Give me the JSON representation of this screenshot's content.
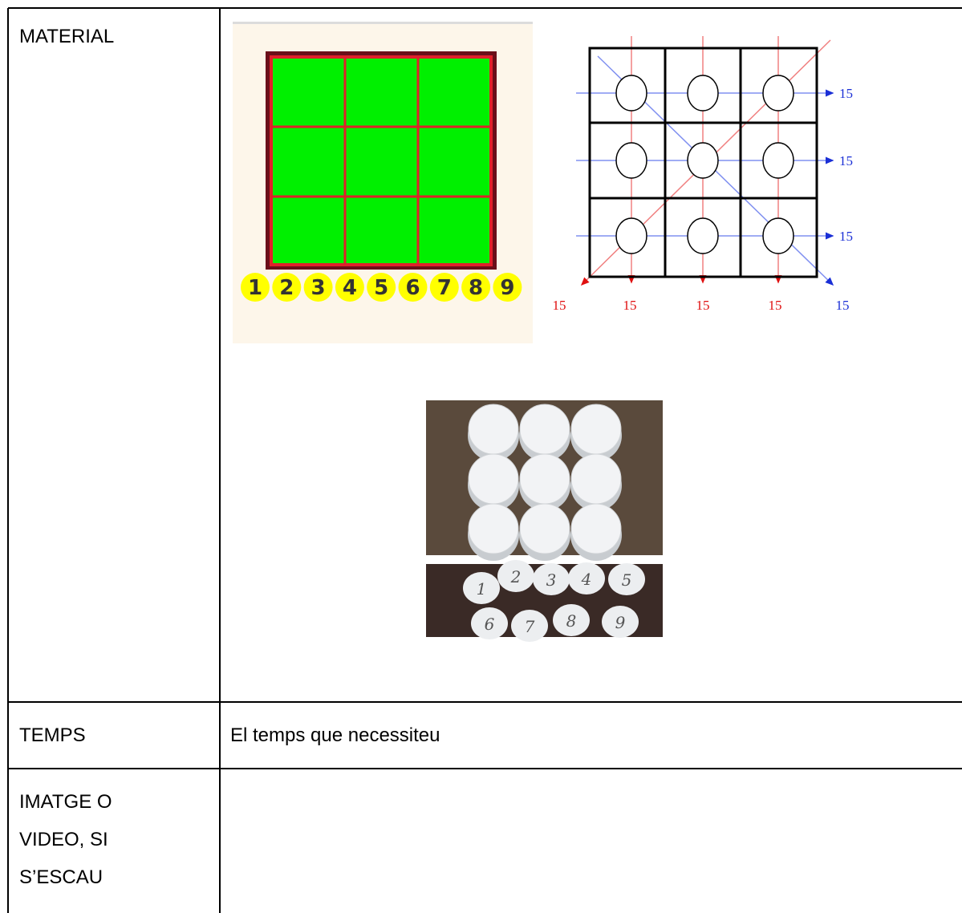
{
  "rows": [
    {
      "label": "MATERIAL",
      "content": {
        "board_numbers": [
          "1",
          "2",
          "3",
          "4",
          "5",
          "6",
          "7",
          "8",
          "9"
        ],
        "diagram_sums": {
          "right": [
            "15",
            "15",
            "15"
          ],
          "bottom": [
            "15",
            "15",
            "15",
            "15",
            "15"
          ]
        },
        "caps_labels": [
          "1",
          "2",
          "3",
          "4",
          "5",
          "6",
          "7",
          "8",
          "9"
        ]
      }
    },
    {
      "label": "TEMPS",
      "content": "El temps que necessiteu"
    },
    {
      "label": "IMATGE O VIDEO, SI S’ESCAU"
    }
  ]
}
